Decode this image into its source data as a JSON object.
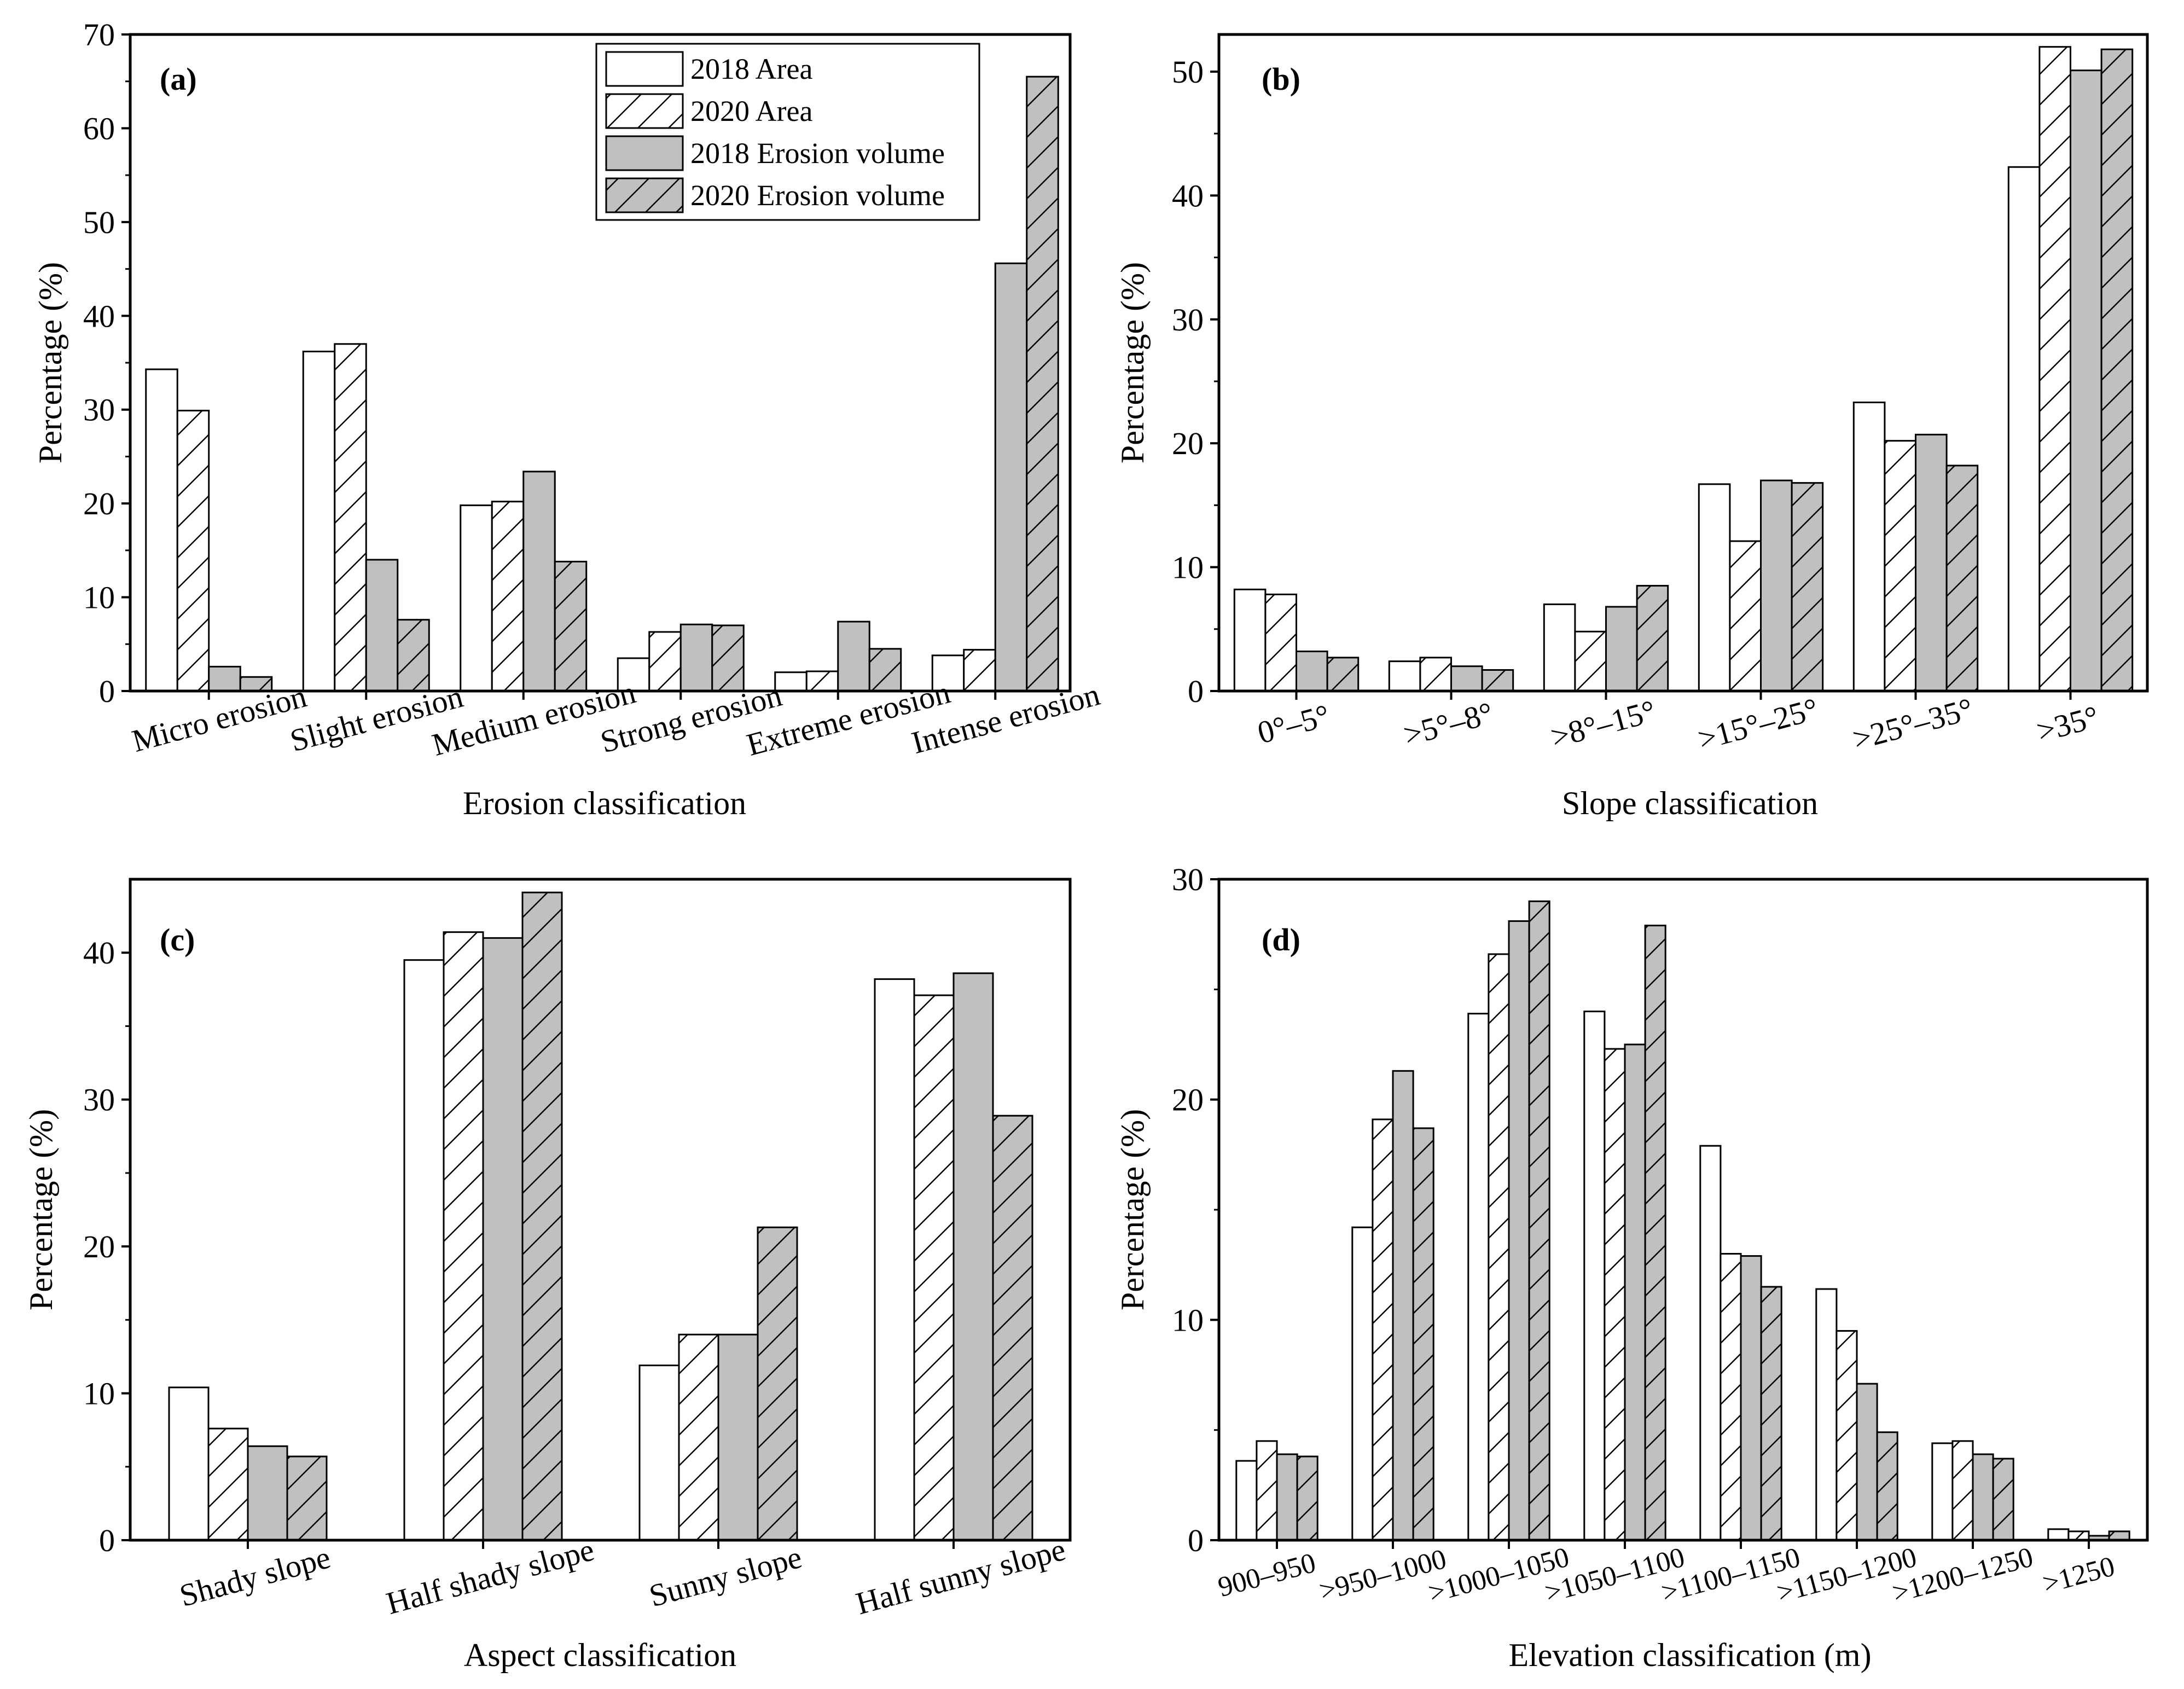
{
  "legend": {
    "entries": [
      "2018 Area",
      "2020 Area",
      "2018 Erosion volume",
      "2020 Erosion volume"
    ]
  },
  "colors": {
    "area_fill": "#ffffff",
    "volume_fill": "#c0c0c0",
    "stroke": "#000000"
  },
  "chart_data": [
    {
      "type": "bar",
      "panel": "(a)",
      "xlabel": "Erosion classification",
      "ylabel": "Percentage (%)",
      "ylim": [
        0,
        70
      ],
      "yticks": [
        "0",
        "10",
        "20",
        "30",
        "40",
        "50",
        "60",
        "70"
      ],
      "yticks_values": [
        0,
        10,
        20,
        30,
        40,
        50,
        60,
        70
      ],
      "legend_position": "top-right",
      "categories": [
        "Micro erosion",
        "Slight erosion",
        "Medium erosion",
        "Strong erosion",
        "Extreme erosion",
        "Intense erosion"
      ],
      "series": [
        {
          "name": "2018 Area",
          "values": [
            34.3,
            36.2,
            19.8,
            3.5,
            2.0,
            3.8
          ]
        },
        {
          "name": "2020 Area",
          "values": [
            29.9,
            37.0,
            20.2,
            6.3,
            2.1,
            4.4
          ]
        },
        {
          "name": "2018 Erosion volume",
          "values": [
            2.6,
            14.0,
            23.4,
            7.1,
            7.4,
            45.6
          ]
        },
        {
          "name": "2020 Erosion volume",
          "values": [
            1.5,
            7.6,
            13.8,
            7.0,
            4.5,
            65.5
          ]
        }
      ]
    },
    {
      "type": "bar",
      "panel": "(b)",
      "xlabel": "Slope classification",
      "ylabel": "Percentage (%)",
      "ylim": [
        0,
        53
      ],
      "yticks": [
        "0",
        "10",
        "20",
        "30",
        "40",
        "50"
      ],
      "yticks_values": [
        0,
        10,
        20,
        30,
        40,
        50
      ],
      "categories": [
        "0°–5°",
        ">5°–8°",
        ">8°–15°",
        ">15°–25°",
        ">25°–35°",
        ">35°"
      ],
      "series": [
        {
          "name": "2018 Area",
          "values": [
            8.2,
            2.4,
            7.0,
            16.7,
            23.3,
            42.3
          ]
        },
        {
          "name": "2020 Area",
          "values": [
            7.8,
            2.7,
            4.8,
            12.1,
            20.2,
            52.0
          ]
        },
        {
          "name": "2018 Erosion volume",
          "values": [
            3.2,
            2.0,
            6.8,
            17.0,
            20.7,
            50.1
          ]
        },
        {
          "name": "2020 Erosion volume",
          "values": [
            2.7,
            1.7,
            8.5,
            16.8,
            18.2,
            51.8
          ]
        }
      ]
    },
    {
      "type": "bar",
      "panel": "(c)",
      "xlabel": "Aspect classification",
      "ylabel": "Percentage (%)",
      "ylim": [
        0,
        45
      ],
      "yticks": [
        "0",
        "10",
        "20",
        "30",
        "40"
      ],
      "yticks_values": [
        0,
        10,
        20,
        30,
        40
      ],
      "categories": [
        "Shady slope",
        "Half shady slope",
        "Sunny slope",
        "Half sunny slope"
      ],
      "series": [
        {
          "name": "2018 Area",
          "values": [
            10.4,
            39.5,
            11.9,
            38.2
          ]
        },
        {
          "name": "2020 Area",
          "values": [
            7.6,
            41.4,
            14.0,
            37.1
          ]
        },
        {
          "name": "2018 Erosion volume",
          "values": [
            6.4,
            41.0,
            14.0,
            38.6
          ]
        },
        {
          "name": "2020 Erosion volume",
          "values": [
            5.7,
            44.1,
            21.3,
            28.9
          ]
        }
      ]
    },
    {
      "type": "bar",
      "panel": "(d)",
      "xlabel": "Elevation classification (m)",
      "ylabel": "Percentage (%)",
      "ylim": [
        0,
        30
      ],
      "yticks": [
        "0",
        "10",
        "20",
        "30"
      ],
      "yticks_values": [
        0,
        10,
        20,
        30
      ],
      "categories": [
        "900–950",
        ">950–1000",
        ">1000–1050",
        ">1050–1100",
        ">1100–1150",
        ">1150–1200",
        ">1200–1250",
        ">1250"
      ],
      "series": [
        {
          "name": "2018 Area",
          "values": [
            3.6,
            14.2,
            23.9,
            24.0,
            17.9,
            11.4,
            4.4,
            0.5
          ]
        },
        {
          "name": "2020 Area",
          "values": [
            4.5,
            19.1,
            26.6,
            22.3,
            13.0,
            9.5,
            4.5,
            0.4
          ]
        },
        {
          "name": "2018 Erosion volume",
          "values": [
            3.9,
            21.3,
            28.1,
            22.5,
            12.9,
            7.1,
            3.9,
            0.2
          ]
        },
        {
          "name": "2020 Erosion volume",
          "values": [
            3.8,
            18.7,
            29.0,
            27.9,
            11.5,
            4.9,
            3.7,
            0.4
          ]
        }
      ]
    }
  ]
}
